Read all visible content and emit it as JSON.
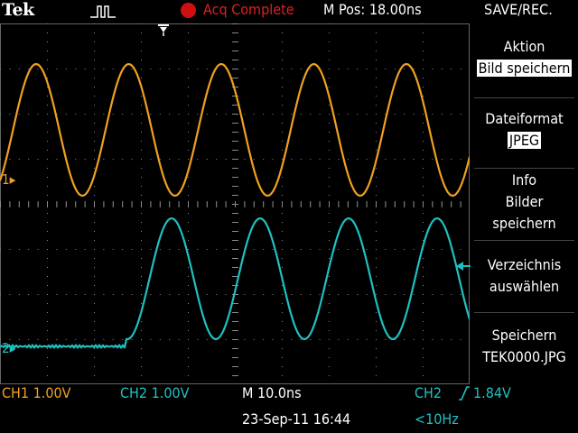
{
  "header": {
    "brand": "Tek",
    "acquisition_status": "Acq Complete",
    "horizontal_position": "M Pos: 18.00ns",
    "menu_title": "SAVE/REC."
  },
  "channels": {
    "ch1": {
      "ref_marker": "1",
      "color": "#f0a020"
    },
    "ch2": {
      "ref_marker": "2",
      "color": "#20c0c0"
    }
  },
  "side_menu": {
    "items": [
      {
        "title": "Aktion",
        "value": "Bild speichern"
      },
      {
        "title": "Dateiformat",
        "value": "JPEG"
      },
      {
        "lines": [
          "Info",
          "Bilder",
          "speichern"
        ]
      },
      {
        "lines": [
          "Verzeichnis",
          "auswählen"
        ]
      },
      {
        "lines": [
          "Speichern",
          "TEK0000.JPG"
        ]
      }
    ]
  },
  "footer": {
    "ch1_scale": "CH1  1.00V",
    "ch2_scale": "CH2  1.00V",
    "time_scale": "M 10.0ns",
    "trigger_source": "CH2",
    "trigger_level": "1.84V",
    "date_time": "23-Sep-11 16:44",
    "frequency": "<10Hz"
  },
  "colors": {
    "acq_status": "#e02020",
    "graticule": "#8c8c8c"
  }
}
